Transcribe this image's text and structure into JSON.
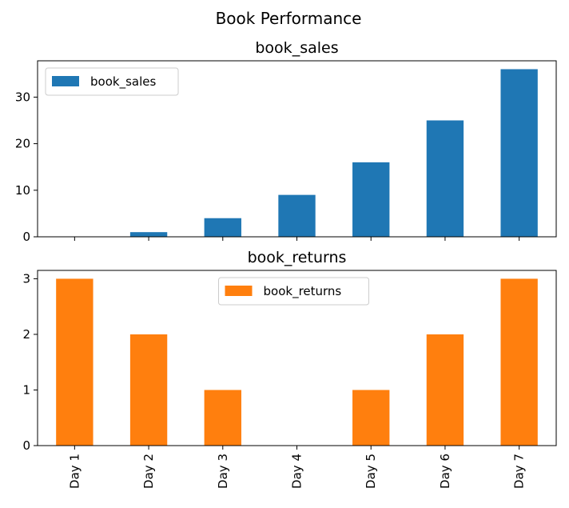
{
  "figure": {
    "title": "Book Performance"
  },
  "chart_data": [
    {
      "type": "bar",
      "title": "book_sales",
      "categories": [
        "Day 1",
        "Day 2",
        "Day 3",
        "Day 4",
        "Day 5",
        "Day 6",
        "Day 7"
      ],
      "series": [
        {
          "name": "book_sales",
          "values": [
            0,
            1,
            4,
            9,
            16,
            25,
            36
          ],
          "color": "#1f77b4"
        }
      ],
      "ylim": [
        0,
        37.8
      ],
      "yticks": [
        0,
        10,
        20,
        30
      ],
      "legend": "top-left",
      "grid": false,
      "show_xticklabels": false
    },
    {
      "type": "bar",
      "title": "book_returns",
      "categories": [
        "Day 1",
        "Day 2",
        "Day 3",
        "Day 4",
        "Day 5",
        "Day 6",
        "Day 7"
      ],
      "series": [
        {
          "name": "book_returns",
          "values": [
            3,
            2,
            1,
            0,
            1,
            2,
            3
          ],
          "color": "#ff7f0e"
        }
      ],
      "ylim": [
        0,
        3.15
      ],
      "yticks": [
        0,
        1,
        2,
        3
      ],
      "legend": "top-center",
      "grid": false,
      "show_xticklabels": true
    }
  ]
}
